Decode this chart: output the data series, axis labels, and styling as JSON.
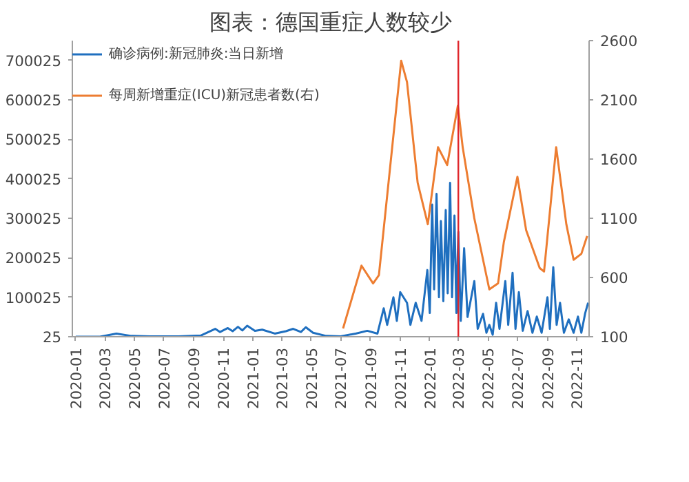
{
  "chart_data": {
    "type": "line",
    "title": "图表：德国重症人数较少",
    "x": [
      "2020-01-01",
      "2020-02-20",
      "2020-03-25",
      "2020-04-25",
      "2020-06-01",
      "2020-08-01",
      "2020-09-15",
      "2020-10-15",
      "2020-10-25",
      "2020-11-10",
      "2020-11-20",
      "2020-12-01",
      "2020-12-10",
      "2020-12-20",
      "2021-01-05",
      "2021-01-20",
      "2021-02-15",
      "2021-03-10",
      "2021-03-25",
      "2021-04-10",
      "2021-04-20",
      "2021-05-05",
      "2021-06-01",
      "2021-07-01",
      "2021-08-01",
      "2021-08-25",
      "2021-09-15",
      "2021-09-28",
      "2021-10-05",
      "2021-10-18",
      "2021-10-25",
      "2021-11-01",
      "2021-11-15",
      "2021-11-22",
      "2021-12-03",
      "2021-12-15",
      "2021-12-27",
      "2022-01-01",
      "2022-01-06",
      "2022-01-10",
      "2022-01-15",
      "2022-01-20",
      "2022-01-24",
      "2022-01-29",
      "2022-02-03",
      "2022-02-07",
      "2022-02-12",
      "2022-02-16",
      "2022-02-21",
      "2022-02-25",
      "2022-03-01",
      "2022-03-06",
      "2022-03-13",
      "2022-03-20",
      "2022-04-03",
      "2022-04-10",
      "2022-04-21",
      "2022-04-28",
      "2022-05-04",
      "2022-05-11",
      "2022-05-18",
      "2022-05-25",
      "2022-06-06",
      "2022-06-12",
      "2022-06-21",
      "2022-06-27",
      "2022-07-04",
      "2022-07-12",
      "2022-07-22",
      "2022-08-01",
      "2022-08-10",
      "2022-08-20",
      "2022-09-01",
      "2022-09-06",
      "2022-09-13",
      "2022-09-20",
      "2022-09-27",
      "2022-10-05",
      "2022-10-15",
      "2022-10-25",
      "2022-11-03",
      "2022-11-10",
      "2022-11-18",
      "2022-11-24"
    ],
    "xlim": [
      "2019-12-25",
      "2022-11-26"
    ],
    "xticks": [
      "2020-01",
      "2020-03",
      "2020-05",
      "2020-07",
      "2020-09",
      "2020-11",
      "2021-01",
      "2021-03",
      "2021-05",
      "2021-07",
      "2021-09",
      "2021-11",
      "2022-01",
      "2022-03",
      "2022-05",
      "2022-07",
      "2022-09",
      "2022-11"
    ],
    "ylim": [
      25,
      750025
    ],
    "yticks": [
      25,
      100025,
      200025,
      300025,
      400025,
      500025,
      600025,
      700025
    ],
    "y2lim": [
      100,
      2600
    ],
    "y2ticks": [
      100,
      600,
      1100,
      1600,
      2100,
      2600
    ],
    "legend": "top left",
    "grid": false,
    "series": [
      {
        "name": "确诊病例:新冠肺炎:当日新增",
        "color": "#1f6fbf",
        "values": [
          25,
          25,
          8000,
          2000,
          1000,
          1000,
          3000,
          20000,
          12000,
          22000,
          14000,
          25000,
          16000,
          28000,
          15000,
          18000,
          8000,
          14000,
          20000,
          12000,
          24000,
          10000,
          2000,
          1000,
          8000,
          15000,
          8000,
          72000,
          30000,
          100000,
          40000,
          113000,
          86000,
          30000,
          86000,
          40000,
          169000,
          60000,
          335000,
          120000,
          362000,
          100000,
          293000,
          90000,
          321000,
          110000,
          390000,
          100000,
          307000,
          60000,
          266000,
          40000,
          224000,
          50000,
          141000,
          20000,
          58000,
          10000,
          30000,
          5000,
          86000,
          20000,
          141000,
          30000,
          162000,
          20000,
          113000,
          15000,
          65000,
          10000,
          51000,
          10000,
          100000,
          20000,
          176000,
          30000,
          86000,
          10000,
          44000,
          10000,
          51000,
          10000,
          60000,
          86000
        ]
      },
      {
        "name": "每周新增重症(ICU)新冠患者数(右)",
        "color": "#ed7d31",
        "axis": "y2",
        "x": [
          "2021-07-06",
          "2021-08-13",
          "2021-09-06",
          "2021-09-18",
          "2021-11-03",
          "2021-11-15",
          "2021-12-07",
          "2021-12-28",
          "2022-01-18",
          "2022-02-06",
          "2022-02-28",
          "2022-03-10",
          "2022-04-03",
          "2022-05-04",
          "2022-05-22",
          "2022-06-03",
          "2022-07-01",
          "2022-07-19",
          "2022-08-16",
          "2022-08-25",
          "2022-09-19",
          "2022-10-10",
          "2022-10-25",
          "2022-11-10",
          "2022-11-22"
        ],
        "values": [
          170,
          700,
          550,
          620,
          2430,
          2250,
          1400,
          1050,
          1700,
          1550,
          2050,
          1700,
          1100,
          500,
          550,
          900,
          1450,
          1000,
          680,
          650,
          1700,
          1050,
          750,
          800,
          950
        ]
      }
    ],
    "ref_lines": [
      {
        "axis": "x",
        "value": "2022-03-01",
        "color": "#e0262b"
      }
    ]
  }
}
